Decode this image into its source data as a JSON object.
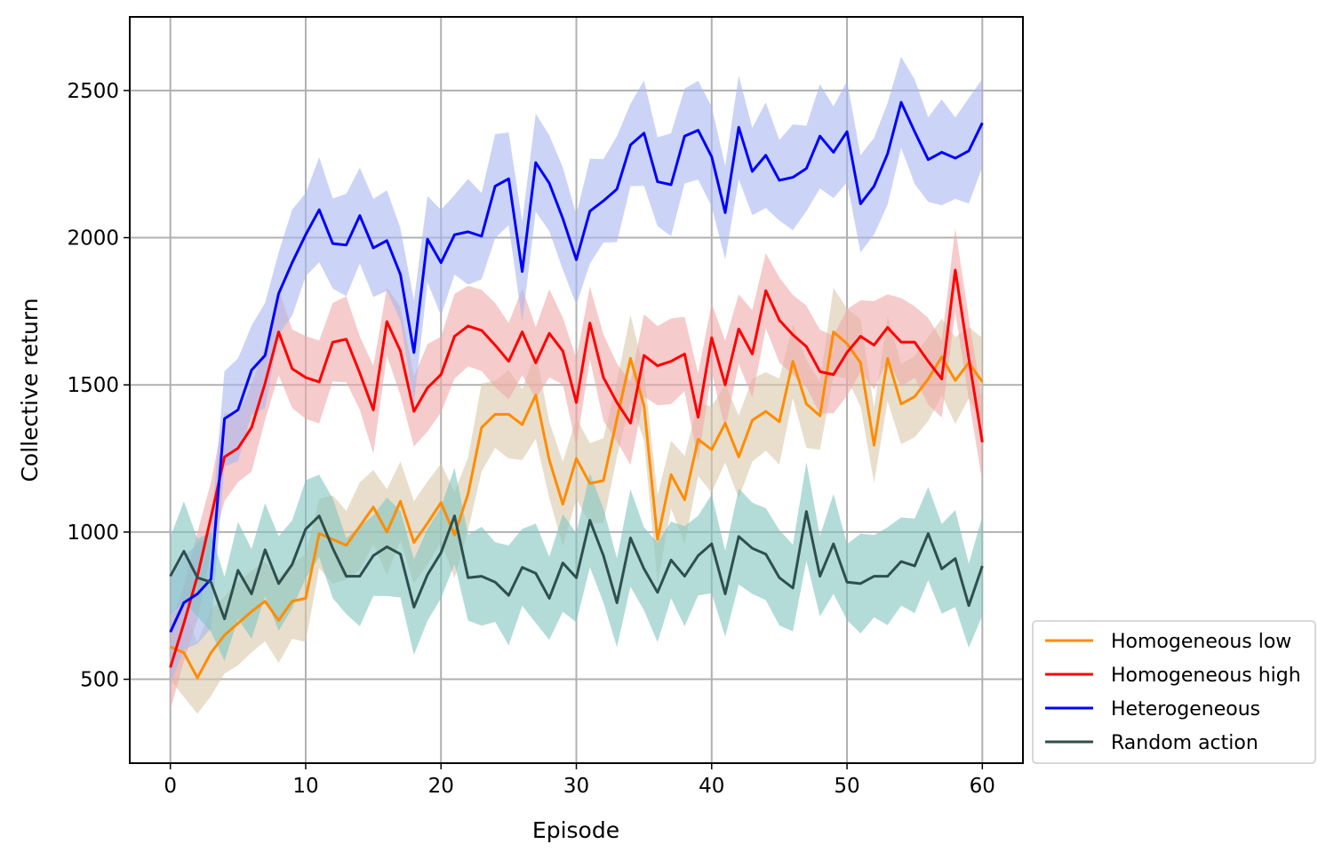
{
  "chart_data": {
    "type": "line",
    "title": "",
    "xlabel": "Episode",
    "ylabel": "Collective return",
    "xlim": [
      -3,
      63
    ],
    "ylim": [
      215,
      2750
    ],
    "xticks": [
      0,
      10,
      20,
      30,
      40,
      50,
      60
    ],
    "yticks": [
      500,
      1000,
      1500,
      2000,
      2500
    ],
    "grid": true,
    "legend_position": "lower-right-outside",
    "series": [
      {
        "name": "Homogeneous low",
        "color": "#ff8c00",
        "band_color": "#d8c8a8",
        "band": 150,
        "values": [
          610,
          590,
          505,
          590,
          650,
          690,
          730,
          765,
          700,
          765,
          775,
          995,
          975,
          955,
          1020,
          1085,
          1000,
          1105,
          965,
          1030,
          1100,
          990,
          1130,
          1355,
          1400,
          1400,
          1365,
          1465,
          1245,
          1095,
          1250,
          1165,
          1175,
          1385,
          1590,
          1430,
          975,
          1195,
          1110,
          1315,
          1280,
          1370,
          1255,
          1380,
          1410,
          1375,
          1580,
          1435,
          1395,
          1680,
          1640,
          1575,
          1295,
          1590,
          1435,
          1460,
          1520,
          1595,
          1515,
          1575,
          1510
        ]
      },
      {
        "name": "Homogeneous high",
        "color": "#ff0000",
        "band_color": "#f0a8a8",
        "band": 150,
        "values": [
          540,
          690,
          850,
          1050,
          1255,
          1285,
          1355,
          1505,
          1680,
          1555,
          1525,
          1510,
          1645,
          1655,
          1540,
          1415,
          1715,
          1615,
          1410,
          1490,
          1535,
          1665,
          1700,
          1685,
          1635,
          1580,
          1680,
          1575,
          1675,
          1615,
          1440,
          1710,
          1525,
          1440,
          1370,
          1600,
          1565,
          1580,
          1605,
          1390,
          1660,
          1500,
          1690,
          1605,
          1820,
          1720,
          1670,
          1630,
          1545,
          1535,
          1610,
          1665,
          1635,
          1695,
          1645,
          1645,
          1580,
          1520,
          1890,
          1590,
          1305
        ]
      },
      {
        "name": "Heterogeneous",
        "color": "#0000ff",
        "band_color": "#a8b8f0",
        "band": 180,
        "values": [
          660,
          760,
          790,
          840,
          1385,
          1415,
          1550,
          1600,
          1810,
          1915,
          2010,
          2095,
          1980,
          1975,
          2075,
          1965,
          1990,
          1875,
          1610,
          1995,
          1915,
          2010,
          2020,
          2005,
          2175,
          2200,
          1885,
          2255,
          2185,
          2065,
          1925,
          2090,
          2125,
          2165,
          2315,
          2355,
          2190,
          2180,
          2345,
          2365,
          2275,
          2085,
          2375,
          2225,
          2280,
          2195,
          2205,
          2235,
          2345,
          2290,
          2360,
          2115,
          2175,
          2285,
          2460,
          2360,
          2265,
          2290,
          2270,
          2295,
          2390
        ]
      },
      {
        "name": "Random action",
        "color": "#2f4f4f",
        "band_color": "#80c4c0",
        "band": 170,
        "values": [
          850,
          935,
          845,
          830,
          705,
          870,
          790,
          940,
          825,
          890,
          1010,
          1055,
          945,
          850,
          850,
          920,
          950,
          925,
          745,
          855,
          930,
          1055,
          845,
          850,
          830,
          785,
          880,
          860,
          775,
          895,
          845,
          1040,
          920,
          760,
          980,
          875,
          795,
          905,
          850,
          920,
          960,
          790,
          985,
          945,
          925,
          845,
          810,
          1070,
          850,
          960,
          830,
          825,
          850,
          850,
          900,
          885,
          995,
          875,
          910,
          750,
          885
        ]
      }
    ]
  }
}
